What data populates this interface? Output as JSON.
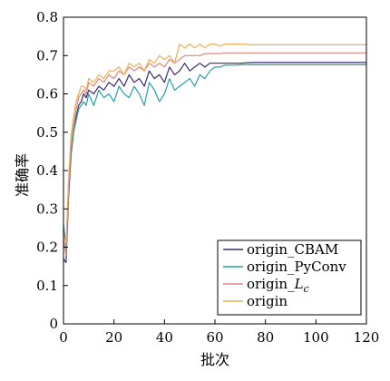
{
  "chart_data": {
    "type": "line",
    "title": "",
    "xlabel": "批次",
    "ylabel": "准确率",
    "xlim": [
      0,
      120
    ],
    "ylim": [
      0,
      0.8
    ],
    "xticks": [
      0,
      20,
      40,
      60,
      80,
      100,
      120
    ],
    "yticks": [
      0,
      0.1,
      0.2,
      0.3,
      0.4,
      0.5,
      0.6,
      0.7,
      0.8
    ],
    "xtick_labels": [
      "0",
      "20",
      "40",
      "60",
      "80",
      "100",
      "120"
    ],
    "ytick_labels": [
      "0",
      "0.1",
      "0.2",
      "0.3",
      "0.4",
      "0.5",
      "0.6",
      "0.7",
      "0.8"
    ],
    "grid": false,
    "legend_position": "bottom-right",
    "x": [
      0,
      1,
      2,
      3,
      4,
      5,
      6,
      7,
      8,
      9,
      10,
      12,
      14,
      16,
      18,
      20,
      22,
      24,
      26,
      28,
      30,
      32,
      34,
      36,
      38,
      40,
      42,
      44,
      46,
      48,
      50,
      52,
      54,
      56,
      58,
      60,
      62,
      64,
      66,
      68,
      70,
      75,
      80,
      90,
      100,
      110,
      120
    ],
    "series": [
      {
        "name": "origin_CBAM",
        "color": "#3d2a6e",
        "values": [
          0.17,
          0.16,
          0.33,
          0.44,
          0.5,
          0.54,
          0.57,
          0.58,
          0.6,
          0.59,
          0.61,
          0.6,
          0.62,
          0.61,
          0.63,
          0.62,
          0.64,
          0.62,
          0.65,
          0.63,
          0.64,
          0.62,
          0.66,
          0.64,
          0.65,
          0.63,
          0.67,
          0.65,
          0.66,
          0.68,
          0.66,
          0.67,
          0.68,
          0.67,
          0.68,
          0.68,
          0.68,
          0.68,
          0.68,
          0.68,
          0.68,
          0.682,
          0.682,
          0.682,
          0.682,
          0.682,
          0.682
        ]
      },
      {
        "name": "origin_PyConv",
        "color": "#2a9fa8",
        "values": [
          0.26,
          0.2,
          0.36,
          0.45,
          0.5,
          0.53,
          0.56,
          0.57,
          0.58,
          0.57,
          0.6,
          0.57,
          0.61,
          0.59,
          0.6,
          0.58,
          0.62,
          0.6,
          0.59,
          0.62,
          0.6,
          0.57,
          0.63,
          0.61,
          0.58,
          0.6,
          0.64,
          0.61,
          0.62,
          0.63,
          0.64,
          0.62,
          0.65,
          0.64,
          0.66,
          0.67,
          0.67,
          0.675,
          0.675,
          0.675,
          0.676,
          0.676,
          0.676,
          0.676,
          0.676,
          0.676,
          0.676
        ]
      },
      {
        "name": "origin_Lc",
        "name_main": "origin_",
        "name_italic": "L",
        "name_sub": "c",
        "color": "#e2847f",
        "values": [
          0.22,
          0.18,
          0.35,
          0.47,
          0.52,
          0.56,
          0.59,
          0.6,
          0.61,
          0.6,
          0.63,
          0.62,
          0.64,
          0.63,
          0.65,
          0.64,
          0.66,
          0.65,
          0.67,
          0.66,
          0.67,
          0.66,
          0.68,
          0.67,
          0.68,
          0.67,
          0.69,
          0.68,
          0.69,
          0.7,
          0.7,
          0.7,
          0.7,
          0.705,
          0.705,
          0.705,
          0.705,
          0.707,
          0.707,
          0.707,
          0.707,
          0.707,
          0.707,
          0.707,
          0.707,
          0.707,
          0.707
        ]
      },
      {
        "name": "origin",
        "color": "#eeae52",
        "values": [
          0.23,
          0.21,
          0.38,
          0.49,
          0.54,
          0.58,
          0.6,
          0.62,
          0.62,
          0.61,
          0.64,
          0.63,
          0.65,
          0.64,
          0.66,
          0.66,
          0.67,
          0.65,
          0.68,
          0.67,
          0.68,
          0.66,
          0.69,
          0.68,
          0.7,
          0.69,
          0.7,
          0.68,
          0.73,
          0.72,
          0.73,
          0.72,
          0.73,
          0.72,
          0.73,
          0.73,
          0.725,
          0.73,
          0.73,
          0.73,
          0.73,
          0.728,
          0.728,
          0.728,
          0.728,
          0.728,
          0.728
        ]
      }
    ]
  }
}
